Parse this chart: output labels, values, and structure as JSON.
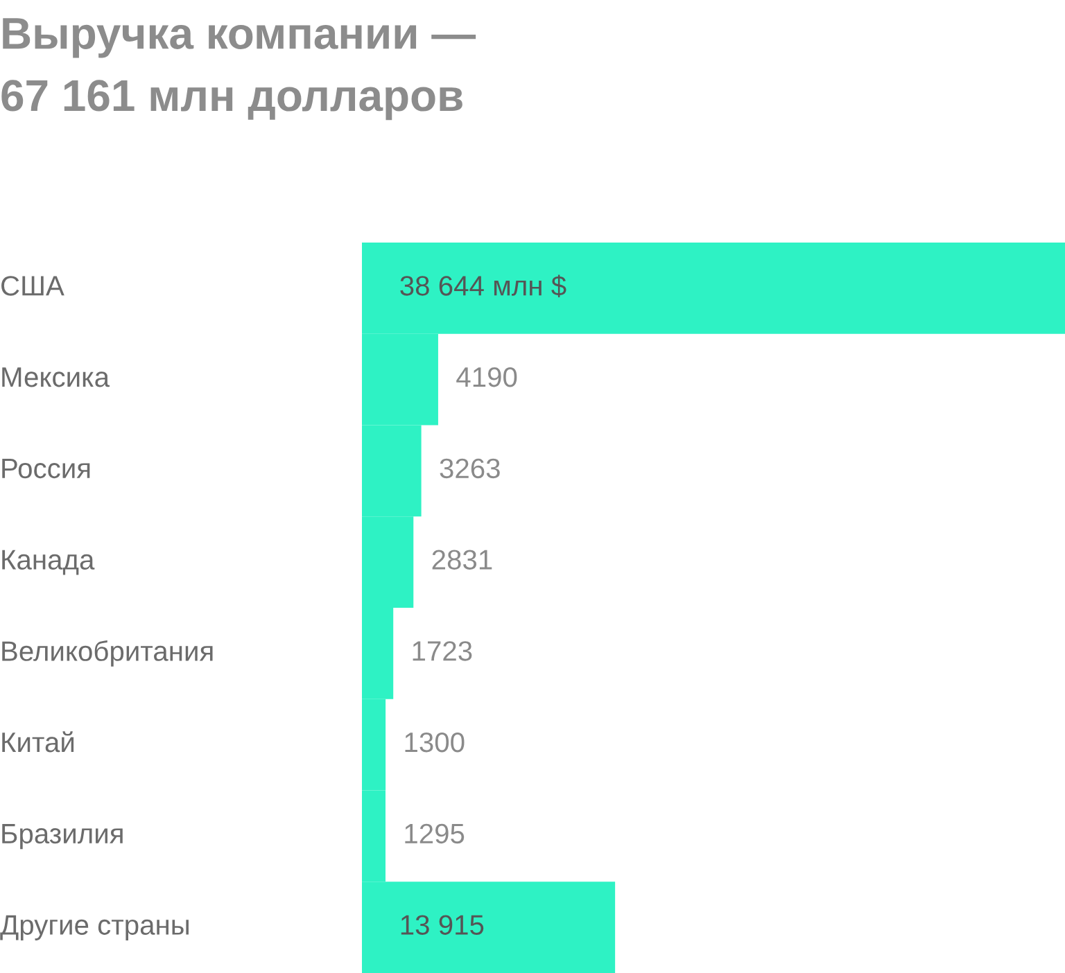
{
  "chart_data": {
    "type": "bar",
    "orientation": "horizontal",
    "title": "Выручка компании —\n67 161 млн долларов",
    "categories": [
      "США",
      "Мексика",
      "Россия",
      "Канада",
      "Великобритания",
      "Китай",
      "Бразилия",
      "Другие страны"
    ],
    "values": [
      38644,
      4190,
      3263,
      2831,
      1723,
      1300,
      1295,
      13915
    ],
    "value_labels": [
      "38 644 млн $",
      "4190",
      "3263",
      "2831",
      "1723",
      "1300",
      "1295",
      "13 915"
    ],
    "color": "#2ef2c4",
    "tick_labels": false
  }
}
